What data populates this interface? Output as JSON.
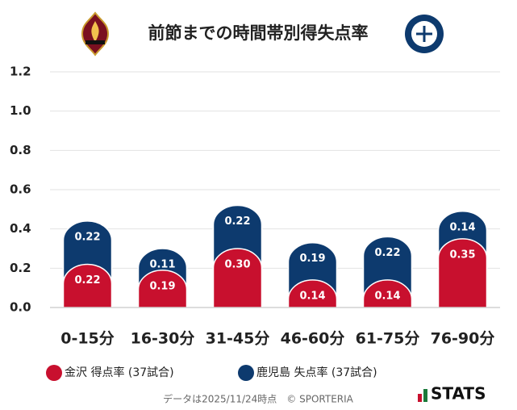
{
  "chart_data": {
    "type": "stacked-bar",
    "title": "前節までの時間帯別得失点率",
    "categories": [
      "0-15分",
      "16-30分",
      "31-45分",
      "46-60分",
      "61-75分",
      "76-90分"
    ],
    "series": [
      {
        "name": "金沢 得点率 (37試合)",
        "color": "#c8102e",
        "values": [
          0.22,
          0.19,
          0.3,
          0.14,
          0.14,
          0.35
        ],
        "value_labels": [
          "0.22",
          "0.19",
          "0.30",
          "0.14",
          "0.14",
          "0.35"
        ]
      },
      {
        "name": "鹿児島 失点率 (37試合)",
        "color": "#0d3a6e",
        "values": [
          0.22,
          0.11,
          0.22,
          0.19,
          0.22,
          0.14
        ],
        "value_labels": [
          "0.22",
          "0.11",
          "0.22",
          "0.19",
          "0.22",
          "0.14"
        ]
      }
    ],
    "ylim": [
      0,
      1.2
    ],
    "yticks": [
      {
        "value": 0,
        "label": "0.0"
      },
      0.2,
      0.4,
      0.6,
      0.8,
      {
        "value": 1,
        "label": "1.0"
      },
      1.2
    ],
    "grid": true
  },
  "footer": {
    "note": "データは2025/11/24時点　© SPORTERIA",
    "brand": "STATS"
  }
}
